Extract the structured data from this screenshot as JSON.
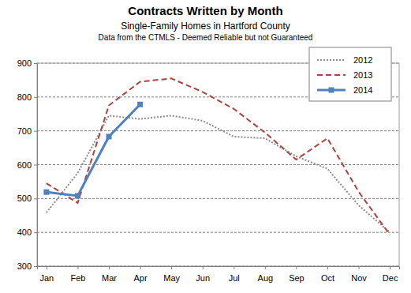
{
  "chart_data": {
    "type": "line",
    "title": "Contracts Written by Month",
    "subtitle": [
      "Single-Family Homes in Hartford County",
      "Data from the CTMLS - Deemed Reliable but not Guaranteed"
    ],
    "categories": [
      "Jan",
      "Feb",
      "Mar",
      "Apr",
      "May",
      "Jun",
      "Jul",
      "Aug",
      "Sep",
      "Oct",
      "Nov",
      "Dec"
    ],
    "series": [
      {
        "name": "2012",
        "color": "#8c8c8c",
        "line_style": "dotted",
        "values": [
          458,
          575,
          745,
          735,
          745,
          730,
          683,
          678,
          625,
          588,
          480,
          400
        ]
      },
      {
        "name": "2013",
        "color": "#b0413e",
        "line_style": "dashed",
        "values": [
          545,
          487,
          775,
          845,
          855,
          815,
          765,
          695,
          615,
          678,
          520,
          393
        ]
      },
      {
        "name": "2014",
        "color": "#4f81bd",
        "line_style": "solid",
        "marker": "square",
        "values": [
          519,
          508,
          683,
          778,
          null,
          null,
          null,
          null,
          null,
          null,
          null,
          null
        ]
      }
    ],
    "ylim": [
      300,
      900
    ],
    "yticks": [
      300,
      400,
      500,
      600,
      700,
      800,
      900
    ],
    "grid": true,
    "legend": "top-right"
  }
}
